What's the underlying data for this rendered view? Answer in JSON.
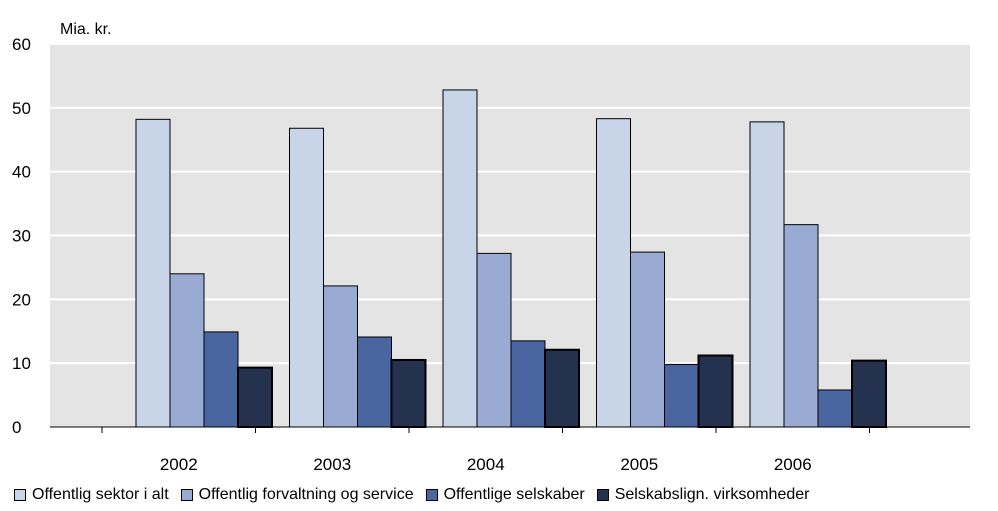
{
  "chart_data": {
    "type": "bar",
    "ylabel": "Mia. kr.",
    "ylim": [
      0,
      60
    ],
    "yticks": [
      0,
      10,
      20,
      30,
      40,
      50,
      60
    ],
    "grid": true,
    "legend_position": "bottom",
    "categories": [
      "2002",
      "2003",
      "2004",
      "2005",
      "2006"
    ],
    "series": [
      {
        "name": "Offentlig sektor i alt",
        "color": "#c8d4e8",
        "values": [
          48.2,
          46.8,
          52.8,
          48.3,
          47.8
        ]
      },
      {
        "name": "Offentlig forvaltning og service",
        "color": "#9aabd3",
        "values": [
          24.0,
          22.1,
          27.2,
          27.4,
          31.7
        ]
      },
      {
        "name": "Offentlige selskaber",
        "color": "#4a66a0",
        "values": [
          14.9,
          14.1,
          13.5,
          9.8,
          5.8
        ]
      },
      {
        "name": "Selskabslign. virksomheder",
        "color": "#25324f",
        "values": [
          9.3,
          10.5,
          12.1,
          11.2,
          10.4
        ]
      }
    ],
    "plot_background": "#e4e4e4"
  }
}
